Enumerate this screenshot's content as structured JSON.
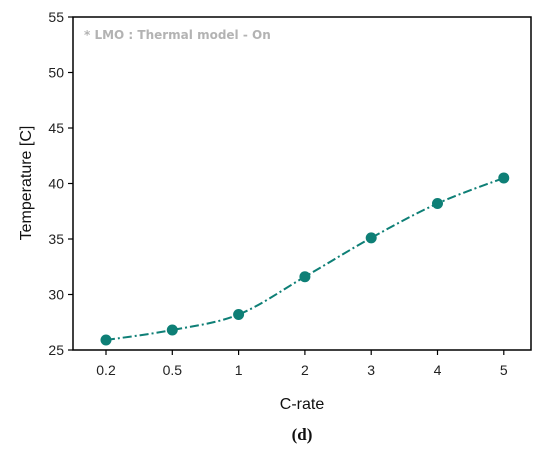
{
  "chart_data": {
    "type": "line",
    "categories": [
      "0.2",
      "0.5",
      "1",
      "2",
      "3",
      "4",
      "5"
    ],
    "series": [
      {
        "name": "",
        "values": [
          25.9,
          26.8,
          28.2,
          31.6,
          35.1,
          38.2,
          40.5
        ]
      }
    ],
    "xlabel": "C-rate",
    "ylabel": "Temperature [C]",
    "ylim": [
      25,
      55
    ],
    "yticks": [
      "25",
      "30",
      "35",
      "40",
      "45",
      "50",
      "55"
    ],
    "annotation": "* LMO : Thermal model - On",
    "panel_label": "(d)",
    "grid": false,
    "legend": "none",
    "line_style": "dash-dot",
    "colors": {
      "series": "#0e7f76",
      "axis": "#000000",
      "annotation": "#b3b3b3"
    }
  }
}
